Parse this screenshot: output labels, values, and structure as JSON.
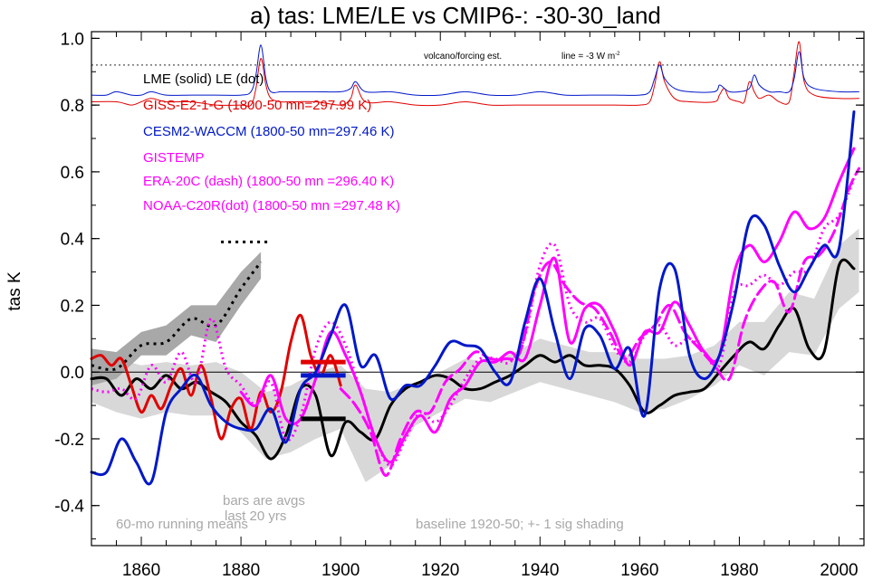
{
  "chart_data": {
    "type": "line",
    "title": "a) tas: LME/LE vs CMIP6-: -30-30_land",
    "xlabel": "",
    "ylabel": "tas K",
    "xlim": [
      1850,
      2005
    ],
    "ylim": [
      -0.52,
      1.02
    ],
    "x_ticks": [
      1860,
      1880,
      1900,
      1920,
      1940,
      1960,
      1980,
      2000
    ],
    "y_ticks": [
      -0.4,
      -0.2,
      0.0,
      0.2,
      0.4,
      0.6,
      0.8,
      1.0
    ],
    "y_tick_labels": [
      "-0.4",
      "-0.2",
      "0.0",
      "0.2",
      "0.4",
      "0.6",
      "0.8",
      "1.0"
    ],
    "zero_line": true,
    "grid": false,
    "legend": [
      {
        "text": "LME (solid)   LE (dot)",
        "color": "#000000"
      },
      {
        "text": "GISS-E2-1-G (1800-50 mn=297.99 K)",
        "color": "#e00000"
      },
      {
        "text": "CESM2-WACCM (1800-50 mn=297.46 K)",
        "color": "#0018c8"
      },
      {
        "text": "GISTEMP",
        "color": "#ff00ff"
      },
      {
        "text": "ERA-20C (dash) (1800-50 mn =296.40 K)",
        "color": "#ff00ff"
      },
      {
        "text": "NOAA-C20R(dot) (1800-50 mn =297.48 K)",
        "color": "#ff00ff"
      }
    ],
    "annotations": {
      "volcano": "volcano/forcing est.",
      "forcing_line": "line = -3 W m",
      "forcing_sup": "-2",
      "bars_note_1": "bars are avgs",
      "bars_note_2": "last 20 yrs",
      "running": "60-mo running means",
      "baseline": "baseline 1920-50; +- 1 sig shading"
    },
    "volcano_reference_y": 0.92,
    "shading": {
      "color": "#d8d8d8",
      "x": [
        1850,
        1855,
        1860,
        1865,
        1870,
        1875,
        1880,
        1885,
        1890,
        1895,
        1900,
        1905,
        1910,
        1915,
        1920,
        1925,
        1930,
        1935,
        1940,
        1945,
        1950,
        1955,
        1960,
        1965,
        1970,
        1975,
        1980,
        1985,
        1990,
        1995,
        2000,
        2004
      ],
      "upper": [
        0.07,
        0.04,
        0.02,
        0.03,
        0.02,
        0.03,
        0.0,
        -0.06,
        -0.04,
        0.0,
        0.02,
        -0.05,
        -0.06,
        -0.03,
        0.0,
        0.04,
        0.03,
        0.06,
        0.1,
        0.08,
        0.06,
        0.06,
        0.04,
        0.04,
        0.05,
        0.08,
        0.15,
        0.15,
        0.24,
        0.22,
        0.38,
        0.43
      ],
      "lower": [
        -0.09,
        -0.12,
        -0.14,
        -0.12,
        -0.13,
        -0.13,
        -0.18,
        -0.26,
        -0.24,
        -0.2,
        -0.17,
        -0.33,
        -0.28,
        -0.16,
        -0.12,
        -0.08,
        -0.09,
        -0.06,
        -0.03,
        -0.05,
        -0.07,
        -0.09,
        -0.12,
        -0.11,
        -0.08,
        -0.04,
        0.02,
        -0.01,
        0.06,
        0.05,
        0.19,
        0.24
      ]
    },
    "le_early": {
      "x": [
        1850,
        1855,
        1860,
        1865,
        1870,
        1875,
        1880,
        1884
      ],
      "upper": [
        0.07,
        0.06,
        0.12,
        0.14,
        0.2,
        0.2,
        0.3,
        0.36
      ],
      "lower": [
        -0.04,
        -0.02,
        0.05,
        0.05,
        0.11,
        0.09,
        0.2,
        0.28
      ],
      "dotted_line": [
        0.02,
        0.01,
        0.08,
        0.09,
        0.16,
        0.14,
        0.25,
        0.33
      ],
      "dotted_hbar": {
        "x": [
          1876,
          1886
        ],
        "y": 0.39
      }
    },
    "series": [
      {
        "name": "LME",
        "color": "#000000",
        "style": "solid",
        "width": 3,
        "x": [
          1850,
          1853,
          1856,
          1859,
          1862,
          1865,
          1868,
          1871,
          1874,
          1877,
          1880,
          1883,
          1886,
          1889,
          1892,
          1895,
          1898,
          1901,
          1904,
          1907,
          1910,
          1913,
          1916,
          1919,
          1922,
          1925,
          1928,
          1931,
          1934,
          1937,
          1940,
          1943,
          1946,
          1949,
          1952,
          1955,
          1958,
          1961,
          1964,
          1967,
          1970,
          1973,
          1976,
          1979,
          1982,
          1985,
          1988,
          1991,
          1994,
          1997,
          2000,
          2003
        ],
        "values": [
          -0.02,
          -0.02,
          -0.07,
          -0.02,
          -0.05,
          -0.01,
          -0.05,
          -0.03,
          -0.06,
          -0.09,
          -0.15,
          -0.19,
          -0.26,
          -0.19,
          -0.05,
          -0.07,
          -0.25,
          -0.15,
          -0.18,
          -0.2,
          -0.1,
          -0.05,
          -0.03,
          -0.01,
          -0.02,
          -0.05,
          -0.05,
          -0.03,
          -0.01,
          0.02,
          0.05,
          0.03,
          0.05,
          0.02,
          0.02,
          0.01,
          -0.04,
          -0.12,
          -0.1,
          -0.07,
          -0.06,
          -0.05,
          0.0,
          0.05,
          0.09,
          0.07,
          0.14,
          0.19,
          0.07,
          0.06,
          0.32,
          0.31
        ]
      },
      {
        "name": "GISS-E2-1-G",
        "color": "#e00000",
        "style": "solid",
        "width": 3,
        "x": [
          1850,
          1852,
          1854,
          1856,
          1858,
          1860,
          1862,
          1864,
          1866,
          1868,
          1870,
          1872,
          1874,
          1876,
          1878,
          1880,
          1882,
          1884,
          1886,
          1888,
          1890,
          1892,
          1894,
          1896,
          1898,
          1900
        ],
        "values": [
          0.04,
          0.05,
          0.02,
          0.04,
          -0.04,
          -0.12,
          -0.07,
          -0.11,
          -0.04,
          0.01,
          -0.07,
          0.02,
          -0.08,
          -0.2,
          -0.11,
          -0.08,
          -0.17,
          -0.06,
          -0.12,
          -0.06,
          0.09,
          0.17,
          0.05,
          -0.01,
          0.05,
          -0.04
        ]
      },
      {
        "name": "CESM2-WACCM",
        "color": "#0018c8",
        "style": "solid",
        "width": 3,
        "x": [
          1850,
          1853,
          1856,
          1859,
          1862,
          1865,
          1868,
          1871,
          1874,
          1877,
          1880,
          1883,
          1886,
          1889,
          1892,
          1895,
          1898,
          1901,
          1904,
          1907,
          1910,
          1913,
          1916,
          1919,
          1922,
          1925,
          1928,
          1931,
          1934,
          1937,
          1940,
          1943,
          1946,
          1949,
          1952,
          1955,
          1958,
          1961,
          1964,
          1967,
          1970,
          1973,
          1976,
          1979,
          1982,
          1985,
          1988,
          1991,
          1994,
          1997,
          2000,
          2003
        ],
        "values": [
          -0.3,
          -0.3,
          -0.2,
          -0.27,
          -0.33,
          -0.12,
          -0.05,
          -0.01,
          -0.1,
          -0.15,
          -0.17,
          -0.17,
          -0.11,
          -0.21,
          -0.05,
          0.0,
          0.11,
          0.2,
          0.02,
          0.05,
          -0.08,
          -0.04,
          -0.04,
          0.02,
          0.09,
          0.08,
          0.07,
          0.0,
          -0.03,
          0.15,
          0.28,
          0.12,
          -0.02,
          0.13,
          0.11,
          0.01,
          0.07,
          -0.13,
          0.25,
          0.31,
          0.05,
          -0.02,
          0.05,
          0.22,
          0.45,
          0.44,
          0.32,
          0.24,
          0.31,
          0.38,
          0.37,
          0.78
        ]
      },
      {
        "name": "GISTEMP",
        "color": "#ff00ff",
        "style": "solid",
        "width": 3,
        "x": [
          1880,
          1883,
          1886,
          1889,
          1892,
          1895,
          1898,
          1901,
          1904,
          1907,
          1910,
          1913,
          1916,
          1919,
          1922,
          1925,
          1928,
          1931,
          1934,
          1937,
          1940,
          1943,
          1946,
          1949,
          1952,
          1955,
          1958,
          1961,
          1964,
          1967,
          1970,
          1973,
          1976,
          1979,
          1982,
          1985,
          1988,
          1991,
          1994,
          1997,
          2000,
          2003
        ],
        "values": [
          -0.06,
          -0.1,
          -0.01,
          -0.14,
          -0.14,
          -0.02,
          0.12,
          0.05,
          -0.06,
          -0.2,
          -0.27,
          -0.19,
          -0.13,
          -0.18,
          -0.08,
          -0.04,
          0.03,
          0.03,
          0.06,
          0.04,
          0.2,
          0.34,
          0.09,
          0.19,
          0.2,
          0.12,
          0.02,
          0.12,
          0.12,
          0.21,
          0.14,
          0.06,
          0.05,
          0.3,
          0.38,
          0.33,
          0.39,
          0.48,
          0.43,
          0.46,
          0.57,
          0.67
        ]
      },
      {
        "name": "ERA-20C",
        "color": "#ff00ff",
        "style": "dash",
        "width": 3,
        "x": [
          1900,
          1903,
          1906,
          1909,
          1912,
          1915,
          1918,
          1921,
          1924,
          1927,
          1930,
          1933,
          1936,
          1939,
          1942,
          1945,
          1948,
          1951,
          1954,
          1957,
          1960,
          1963,
          1966,
          1969,
          1972,
          1975,
          1978,
          1981,
          1984,
          1987,
          1990,
          1993,
          1996,
          1999,
          2002,
          2004
        ],
        "values": [
          -0.05,
          -0.1,
          -0.18,
          -0.31,
          -0.2,
          -0.12,
          -0.12,
          -0.03,
          0.01,
          0.06,
          0.04,
          0.04,
          0.06,
          0.25,
          0.33,
          0.26,
          0.21,
          0.19,
          0.12,
          0.04,
          0.1,
          0.14,
          0.2,
          0.12,
          0.07,
          0.02,
          -0.02,
          0.15,
          0.24,
          0.27,
          0.18,
          0.33,
          0.35,
          0.42,
          0.55,
          0.61
        ]
      },
      {
        "name": "NOAA-C20R",
        "color": "#ff00ff",
        "style": "dot",
        "width": 3,
        "x": [
          1850,
          1853,
          1856,
          1859,
          1862,
          1865,
          1868,
          1871,
          1874,
          1877,
          1880,
          1883,
          1886,
          1889,
          1892,
          1895,
          1898,
          1901,
          1904,
          1907,
          1910,
          1913,
          1916,
          1919,
          1922,
          1925,
          1928,
          1931,
          1934,
          1937,
          1940,
          1943,
          1946,
          1949,
          1952,
          1955,
          1958,
          1961,
          1964,
          1967,
          1970,
          1973,
          1976,
          1979,
          1982,
          1985,
          1988,
          1991,
          1994,
          1997,
          2000,
          2003
        ],
        "values": [
          -0.05,
          -0.06,
          -0.05,
          -0.08,
          0.02,
          -0.03,
          0.06,
          -0.03,
          0.16,
          0.01,
          -0.04,
          -0.1,
          -0.03,
          -0.2,
          -0.13,
          0.07,
          0.15,
          0.08,
          -0.06,
          -0.2,
          -0.28,
          -0.2,
          -0.12,
          -0.15,
          -0.1,
          -0.02,
          0.04,
          0.04,
          0.03,
          0.11,
          0.32,
          0.38,
          0.2,
          0.15,
          0.16,
          0.07,
          0.03,
          0.11,
          0.14,
          0.08,
          0.1,
          0.06,
          0.02,
          0.24,
          0.26,
          0.29,
          0.26,
          0.3,
          0.31,
          0.43,
          0.47,
          0.58
        ]
      },
      {
        "name": "LME volcanic forcing",
        "color": "#e00000",
        "style": "solid",
        "width": 1,
        "panel": "forcing",
        "x": [
          1850,
          1855,
          1858,
          1860,
          1862,
          1865,
          1870,
          1875,
          1880,
          1882,
          1883,
          1884,
          1885,
          1886,
          1888,
          1890,
          1895,
          1900,
          1902,
          1903,
          1905,
          1910,
          1915,
          1920,
          1925,
          1930,
          1935,
          1940,
          1945,
          1950,
          1955,
          1960,
          1962,
          1963,
          1964,
          1965,
          1967,
          1970,
          1975,
          1976,
          1977,
          1978,
          1980,
          1981,
          1982,
          1983,
          1984,
          1986,
          1988,
          1990,
          1991,
          1992,
          1993,
          1995,
          2000,
          2004
        ],
        "values": [
          0.81,
          0.81,
          0.8,
          0.81,
          0.82,
          0.81,
          0.81,
          0.8,
          0.8,
          0.8,
          0.85,
          0.94,
          0.86,
          0.82,
          0.81,
          0.81,
          0.81,
          0.8,
          0.82,
          0.86,
          0.81,
          0.81,
          0.8,
          0.8,
          0.81,
          0.8,
          0.8,
          0.8,
          0.8,
          0.8,
          0.8,
          0.8,
          0.81,
          0.86,
          0.93,
          0.87,
          0.82,
          0.81,
          0.81,
          0.83,
          0.85,
          0.82,
          0.81,
          0.81,
          0.87,
          0.84,
          0.82,
          0.83,
          0.81,
          0.81,
          0.9,
          0.99,
          0.87,
          0.83,
          0.82,
          0.82
        ]
      },
      {
        "name": "LE volcanic forcing",
        "color": "#0018c8",
        "style": "solid",
        "width": 1,
        "panel": "forcing",
        "x": [
          1850,
          1853,
          1855,
          1858,
          1860,
          1862,
          1865,
          1870,
          1875,
          1880,
          1882,
          1883,
          1884,
          1885,
          1886,
          1888,
          1890,
          1895,
          1900,
          1902,
          1903,
          1905,
          1910,
          1915,
          1920,
          1925,
          1930,
          1935,
          1940,
          1945,
          1950,
          1955,
          1960,
          1962,
          1963,
          1964,
          1965,
          1967,
          1970,
          1975,
          1976,
          1977,
          1978,
          1980,
          1982,
          1983,
          1984,
          1986,
          1988,
          1990,
          1991,
          1992,
          1993,
          1995,
          2000,
          2004
        ],
        "values": [
          0.83,
          0.83,
          0.84,
          0.83,
          0.83,
          0.84,
          0.83,
          0.83,
          0.83,
          0.83,
          0.84,
          0.89,
          0.98,
          0.88,
          0.84,
          0.84,
          0.84,
          0.84,
          0.84,
          0.85,
          0.87,
          0.84,
          0.84,
          0.83,
          0.83,
          0.84,
          0.83,
          0.83,
          0.84,
          0.83,
          0.83,
          0.83,
          0.83,
          0.84,
          0.88,
          0.92,
          0.88,
          0.85,
          0.84,
          0.84,
          0.86,
          0.85,
          0.84,
          0.84,
          0.85,
          0.89,
          0.86,
          0.84,
          0.84,
          0.84,
          0.88,
          0.96,
          0.88,
          0.85,
          0.84,
          0.84
        ]
      }
    ],
    "avg_bars": [
      {
        "name": "GISS-E2-1-G avg",
        "color": "#e00000",
        "x": [
          1892,
          1901
        ],
        "y": 0.03
      },
      {
        "name": "CESM2-WACCM avg",
        "color": "#0018c8",
        "x": [
          1892,
          1901
        ],
        "y": -0.01
      },
      {
        "name": "LME avg",
        "color": "#000000",
        "x": [
          1892,
          1901
        ],
        "y": -0.14
      }
    ]
  }
}
